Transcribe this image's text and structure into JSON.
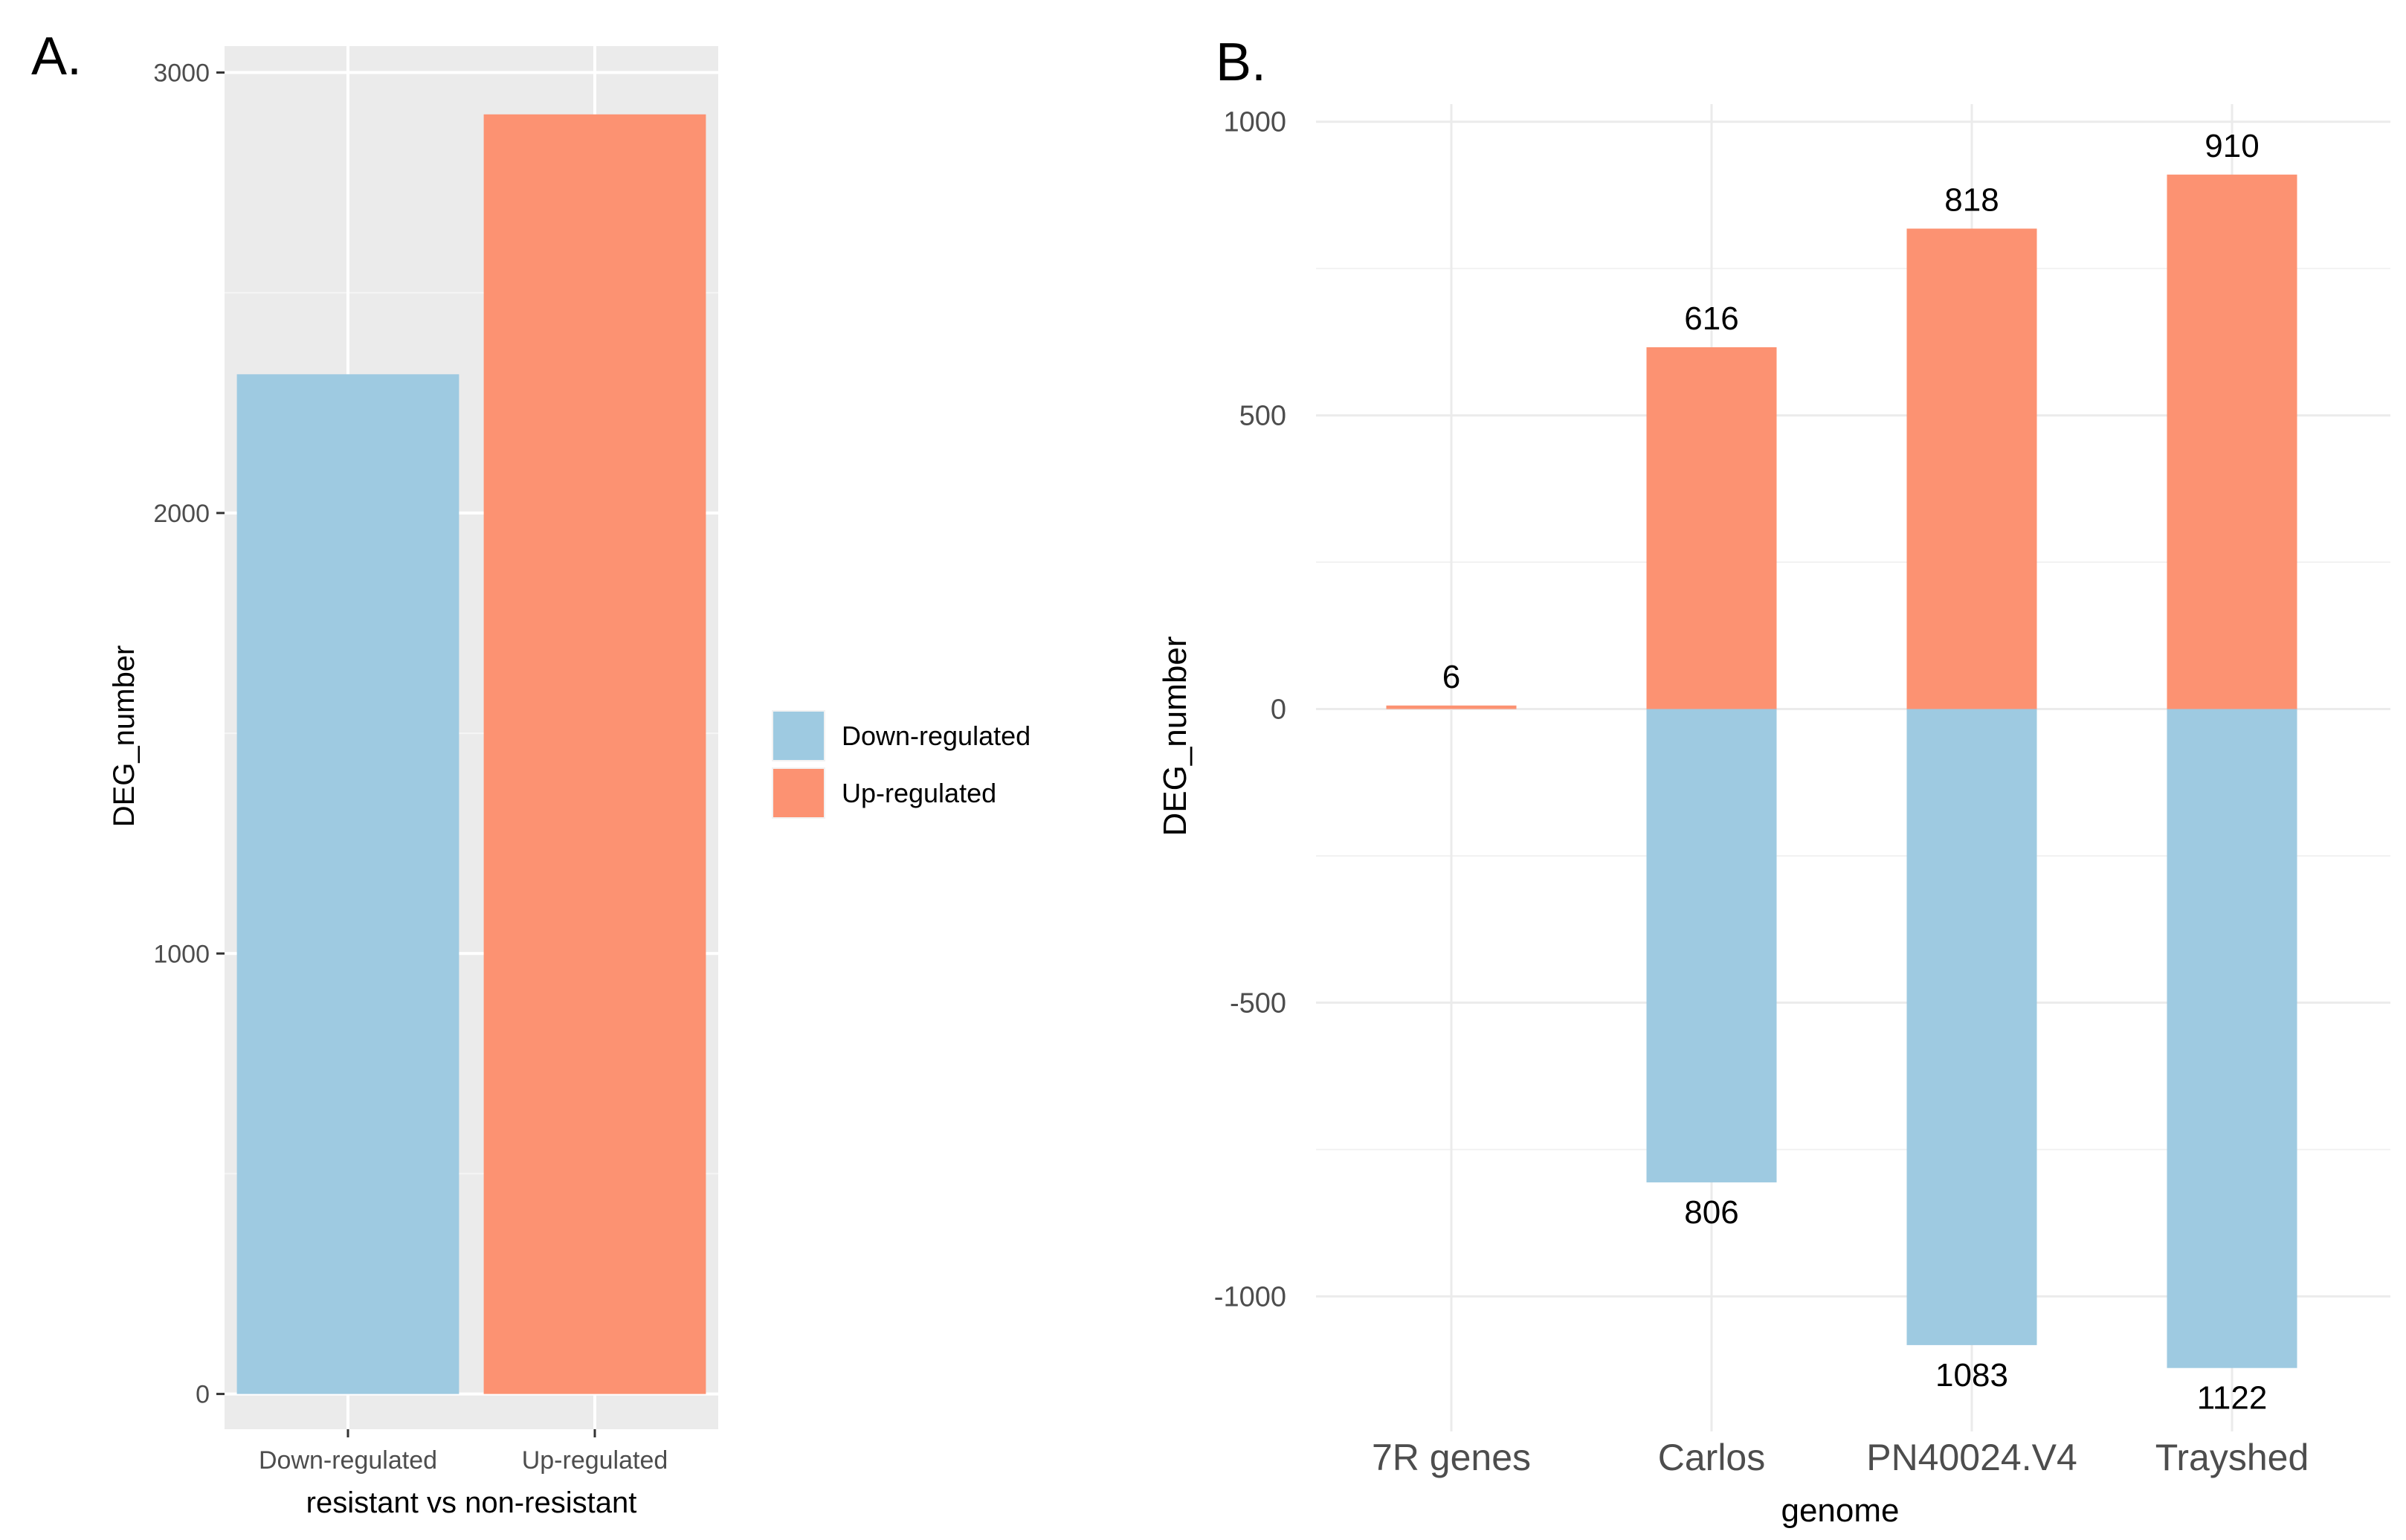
{
  "panels": {
    "a": {
      "letter": "A."
    },
    "b": {
      "letter": "B."
    }
  },
  "chart_data": [
    {
      "panel": "A.",
      "type": "bar",
      "categories": [
        "Down-regulated",
        "Up-regulated"
      ],
      "values": [
        2315,
        2905
      ],
      "colors": [
        "#9ecae1",
        "#fc9272"
      ],
      "xlabel": "resistant vs non-resistant",
      "ylabel": "DEG_number",
      "ylim": [
        -80,
        3060
      ],
      "yticks": [
        0,
        1000,
        2000,
        3000
      ],
      "grid": true,
      "theme": "grey-background",
      "legend": {
        "placement": "right",
        "entries": [
          {
            "label": "Down-regulated",
            "color": "#9ecae1"
          },
          {
            "label": "Up-regulated",
            "color": "#fc9272"
          }
        ]
      }
    },
    {
      "panel": "B.",
      "type": "bar",
      "stacked": true,
      "categories": [
        "7R genes",
        "Carlos",
        "PN40024.V4",
        "Trayshed"
      ],
      "series": [
        {
          "name": "Up-regulated",
          "color": "#fc9272",
          "values": [
            6,
            616,
            818,
            910
          ],
          "labels": [
            "6",
            "616",
            "818",
            "910"
          ]
        },
        {
          "name": "Down-regulated",
          "color": "#9ecae1",
          "values": [
            0,
            -806,
            -1083,
            -1122
          ],
          "labels": [
            "",
            "806",
            "1083",
            "1122"
          ]
        }
      ],
      "xlabel": "genome",
      "ylabel": "DEG_number",
      "ylim": [
        -1230,
        1030
      ],
      "yticks": [
        -1000,
        -500,
        0,
        500,
        1000
      ],
      "grid": true,
      "theme": "white-background"
    }
  ]
}
